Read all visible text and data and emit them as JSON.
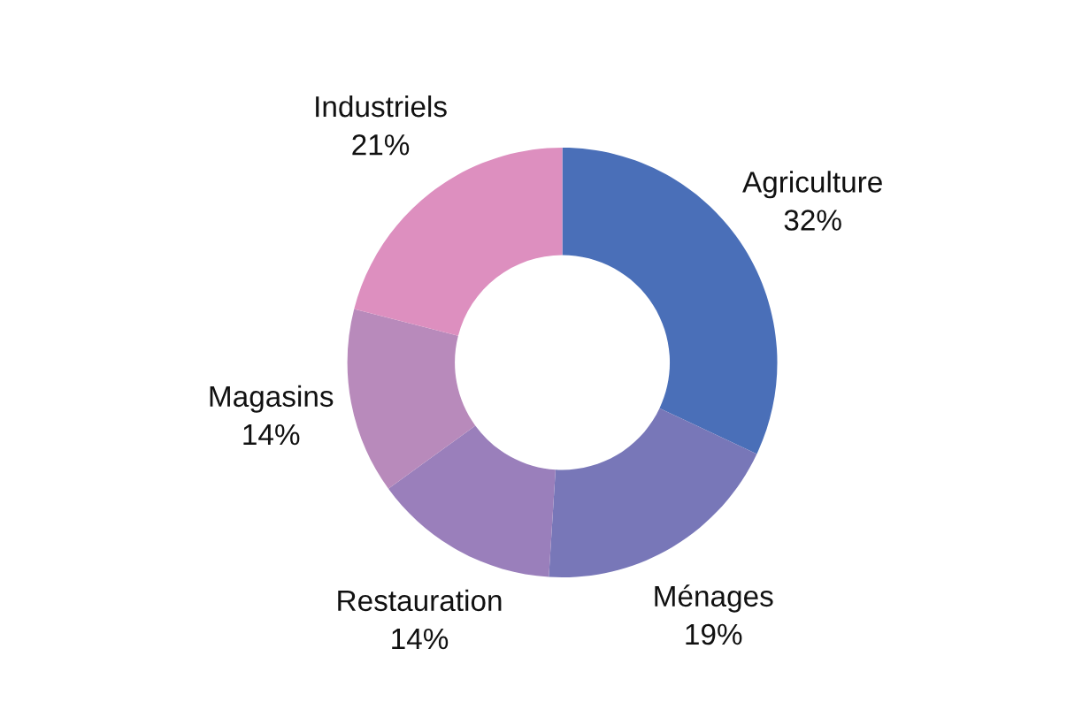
{
  "chart_data": {
    "type": "donut",
    "categories": [
      "Agriculture",
      "Ménages",
      "Restauration",
      "Magasins",
      "Industriels"
    ],
    "values": [
      32,
      19,
      14,
      14,
      21
    ],
    "value_labels": [
      "32%",
      "19%",
      "14%",
      "14%",
      "21%"
    ],
    "colors": [
      "#4a6fb8",
      "#7877b8",
      "#9a7fbb",
      "#b88abb",
      "#dd8fbf"
    ],
    "legend": false
  }
}
